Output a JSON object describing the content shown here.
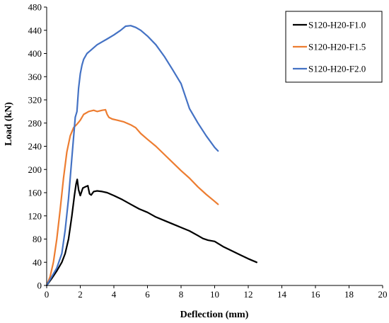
{
  "chart_data": {
    "type": "line",
    "xlabel": "Deflection (mm)",
    "ylabel": "Load (kN)",
    "xlim": [
      0,
      20
    ],
    "ylim": [
      0,
      480
    ],
    "xticks": [
      0,
      2,
      4,
      6,
      8,
      10,
      12,
      14,
      16,
      18,
      20
    ],
    "yticks": [
      0,
      40,
      80,
      120,
      160,
      200,
      240,
      280,
      320,
      360,
      400,
      440,
      480
    ],
    "grid": false,
    "legend_position": "top-right",
    "series": [
      {
        "name": "S120-H20-F1.0",
        "color": "#000000",
        "x": [
          0,
          0.3,
          0.6,
          0.9,
          1.1,
          1.3,
          1.5,
          1.65,
          1.75,
          1.82,
          1.9,
          2.0,
          2.15,
          2.3,
          2.45,
          2.55,
          2.65,
          2.8,
          3.0,
          3.3,
          3.6,
          4.0,
          4.5,
          5.0,
          5.5,
          6.0,
          6.5,
          7.0,
          7.5,
          8.0,
          8.5,
          9.0,
          9.3,
          9.6,
          10.0,
          10.5,
          11.0,
          11.5,
          12.0,
          12.5
        ],
        "y": [
          0,
          12,
          25,
          40,
          55,
          80,
          120,
          155,
          175,
          183,
          165,
          155,
          168,
          170,
          172,
          158,
          156,
          162,
          163,
          162,
          160,
          155,
          148,
          140,
          132,
          126,
          118,
          112,
          106,
          100,
          94,
          86,
          81,
          78,
          76,
          67,
          60,
          53,
          46,
          40
        ]
      },
      {
        "name": "S120-H20-F1.5",
        "color": "#ED7D31",
        "x": [
          0,
          0.2,
          0.4,
          0.6,
          0.8,
          1.0,
          1.2,
          1.4,
          1.6,
          1.8,
          2.0,
          2.2,
          2.5,
          2.8,
          3.0,
          3.3,
          3.5,
          3.6,
          3.7,
          3.9,
          4.2,
          4.6,
          5.0,
          5.3,
          5.6,
          6.0,
          6.5,
          7.0,
          7.5,
          8.0,
          8.5,
          9.0,
          9.5,
          10.0,
          10.2
        ],
        "y": [
          0,
          15,
          40,
          80,
          130,
          185,
          230,
          258,
          272,
          278,
          285,
          295,
          300,
          302,
          300,
          302,
          303,
          295,
          290,
          287,
          285,
          282,
          277,
          272,
          262,
          252,
          240,
          226,
          212,
          198,
          185,
          170,
          157,
          145,
          140
        ]
      },
      {
        "name": "S120-H20-F2.0",
        "color": "#4472C4",
        "x": [
          0,
          0.3,
          0.6,
          0.9,
          1.1,
          1.3,
          1.5,
          1.7,
          1.8,
          1.9,
          2.0,
          2.1,
          2.2,
          2.4,
          2.6,
          2.8,
          3.0,
          3.3,
          3.6,
          4.0,
          4.4,
          4.7,
          5.0,
          5.3,
          5.6,
          6.0,
          6.5,
          7.0,
          7.5,
          8.0,
          8.5,
          9.0,
          9.5,
          10.0,
          10.2
        ],
        "y": [
          0,
          15,
          30,
          55,
          95,
          150,
          220,
          290,
          300,
          340,
          365,
          380,
          390,
          400,
          405,
          410,
          415,
          420,
          425,
          432,
          440,
          447,
          448,
          445,
          440,
          430,
          415,
          395,
          372,
          348,
          305,
          280,
          258,
          238,
          232
        ]
      }
    ]
  }
}
